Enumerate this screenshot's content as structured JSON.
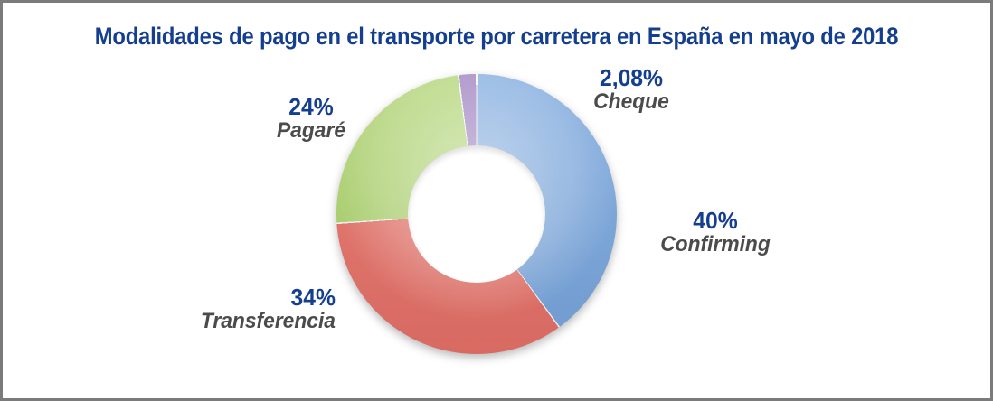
{
  "frame": {
    "border_color": "#7b7b7b",
    "background_color": "#ffffff"
  },
  "title": {
    "text": "Modalidades de pago en el transporte por carretera en España en mayo de 2018",
    "color": "#143e8f"
  },
  "chart_data": {
    "type": "pie",
    "subtype": "donut",
    "title": "Modalidades de pago en el transporte por carretera en España en mayo de 2018",
    "labels": [
      "Confirming",
      "Transferencia",
      "Pagaré",
      "Cheque"
    ],
    "values": [
      40,
      34,
      24,
      2.08
    ],
    "value_labels": [
      "40%",
      "34%",
      "24%",
      "2,08%"
    ],
    "colors": [
      "#79a6dd",
      "#e57168",
      "#acd26d",
      "#9777bb"
    ],
    "start_angle_deg": 0,
    "direction": "clockwise",
    "hole_ratio": 0.49,
    "legend_position": "none",
    "data_label_style": {
      "value_color": "#143e8f",
      "name_color": "#4b4b4b",
      "name_italic": true
    }
  }
}
